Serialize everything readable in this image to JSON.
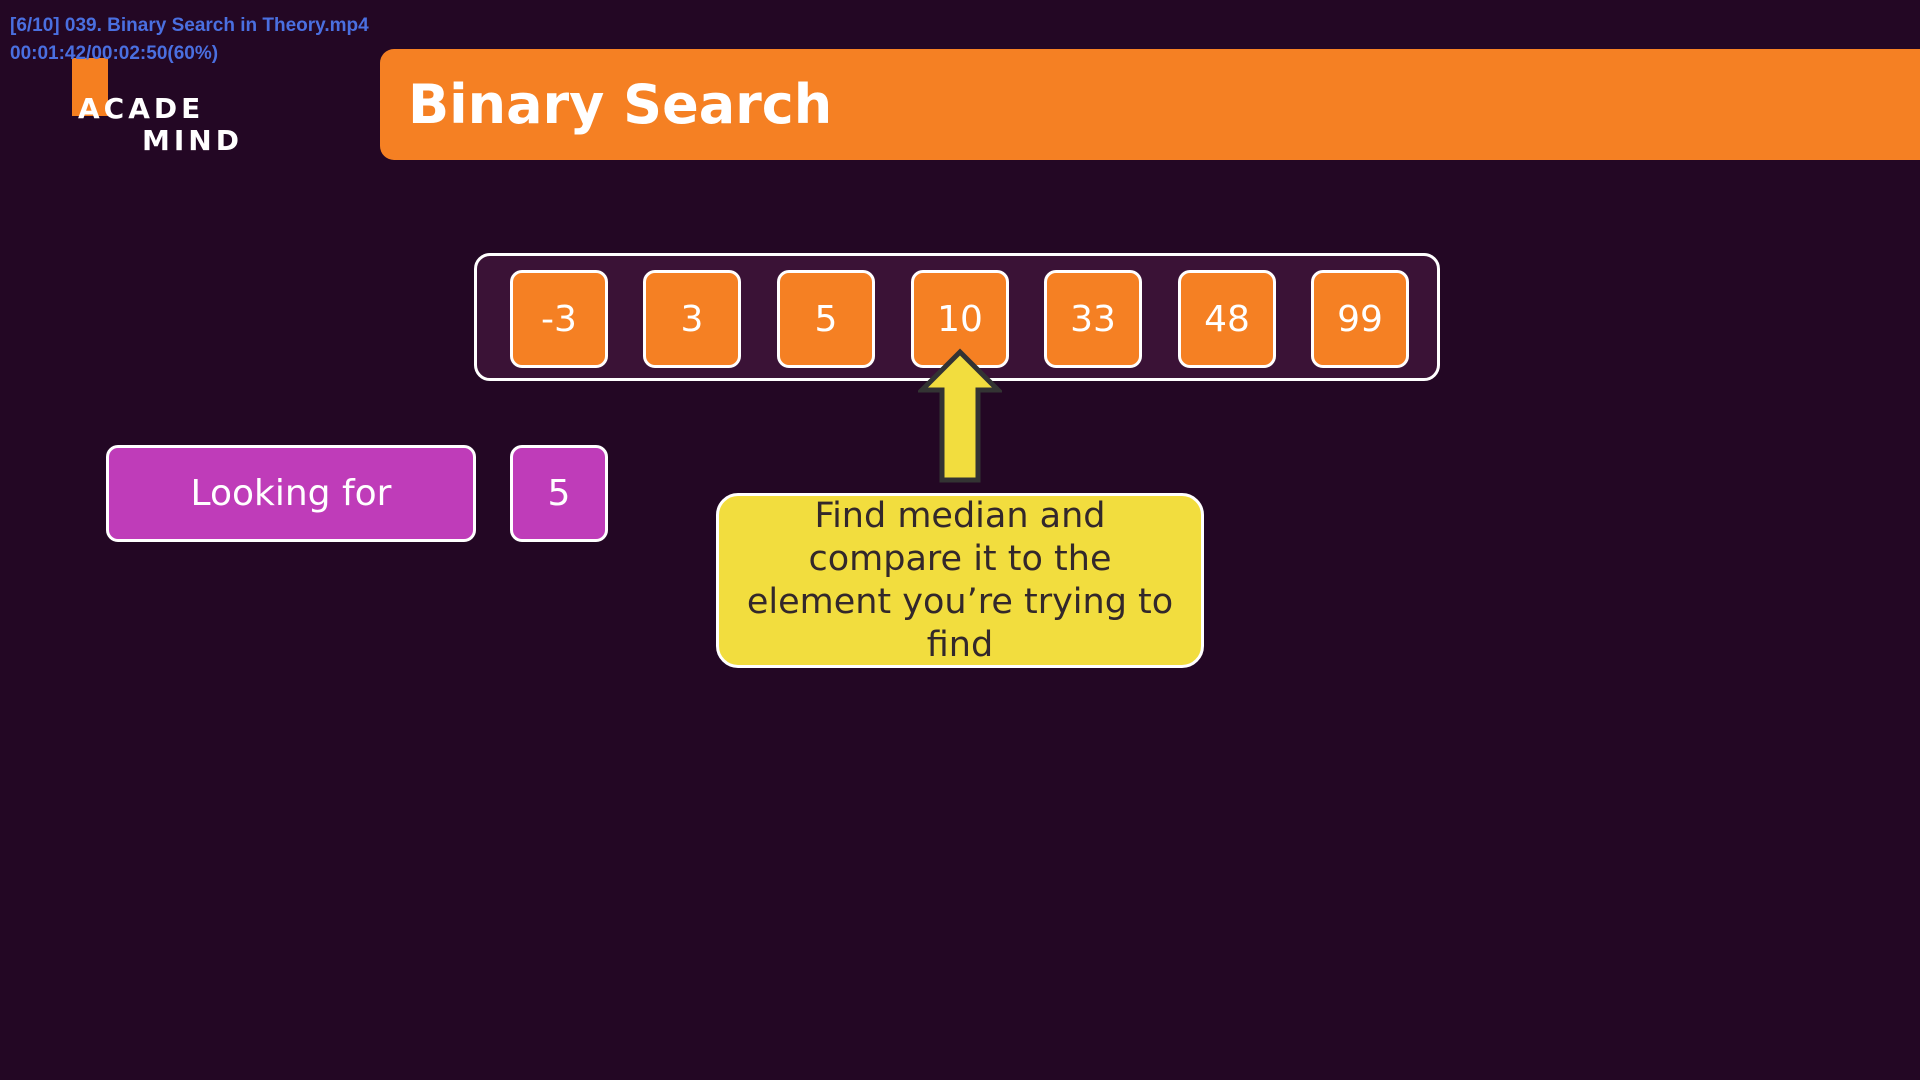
{
  "overlay": {
    "filename": "[6/10] 039. Binary Search in Theory.mp4",
    "time": "00:01:42/00:02:50(60%)"
  },
  "logo": {
    "line1": "ACADE",
    "line2": "MIND"
  },
  "header": {
    "title": "Binary Search"
  },
  "array": {
    "values": [
      "-3",
      "3",
      "5",
      "10",
      "33",
      "48",
      "99"
    ]
  },
  "search": {
    "label": "Looking for",
    "target": "5"
  },
  "callout": {
    "text": "Find median and compare it to the element you’re trying to find"
  },
  "colors": {
    "background": "#230724",
    "accent_orange": "#f58023",
    "magenta": "#bf3cb9",
    "callout_yellow": "#f2dd3e",
    "overlay_blue": "#4a6fe0"
  }
}
